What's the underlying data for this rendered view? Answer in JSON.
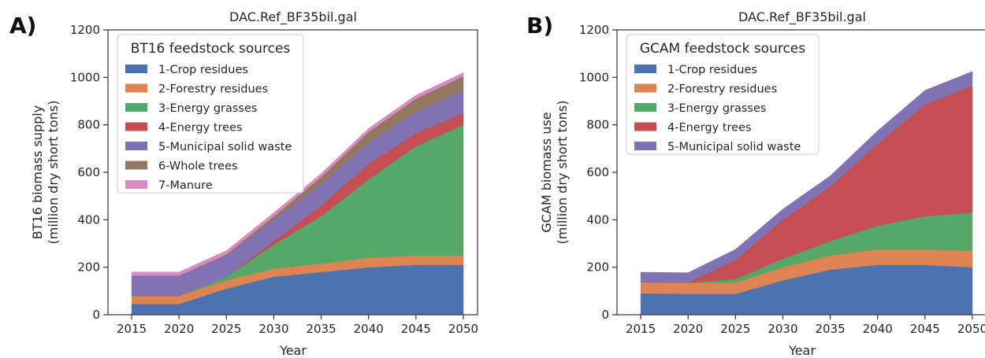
{
  "chart_data": [
    {
      "type": "area",
      "stacked": true,
      "panel_label": "A)",
      "title": "DAC.Ref_BF35bil.gal",
      "xlabel": "Year",
      "ylabel": "BT16 biomass supply",
      "ylabel_line2": "(million dry short tons)",
      "xlim": [
        2012.5,
        2051.5
      ],
      "ylim": [
        0,
        1200
      ],
      "x": [
        2015,
        2020,
        2025,
        2030,
        2035,
        2040,
        2045,
        2050
      ],
      "xticks": [
        "2015",
        "2020",
        "2025",
        "2030",
        "2035",
        "2040",
        "2045",
        "2050"
      ],
      "yticks": [
        "0",
        "200",
        "400",
        "600",
        "800",
        "1000",
        "1200"
      ],
      "grid": false,
      "legend_title": "BT16 feedstock sources",
      "legend_position": "top-left",
      "series": [
        {
          "name": "1-Crop residues",
          "color": "#4c72b0",
          "values": [
            45,
            45,
            110,
            160,
            180,
            200,
            210,
            210
          ]
        },
        {
          "name": "2-Forestry residues",
          "color": "#dd8452",
          "values": [
            35,
            35,
            35,
            35,
            35,
            40,
            40,
            40
          ]
        },
        {
          "name": "3-Energy grasses",
          "color": "#55a868",
          "values": [
            0,
            0,
            15,
            100,
            200,
            330,
            460,
            550
          ]
        },
        {
          "name": "4-Energy trees",
          "color": "#c44e52",
          "values": [
            0,
            0,
            0,
            15,
            45,
            65,
            55,
            50
          ]
        },
        {
          "name": "5-Municipal solid waste",
          "color": "#8172b3",
          "values": [
            85,
            85,
            90,
            90,
            90,
            90,
            90,
            95
          ]
        },
        {
          "name": "6-Whole trees",
          "color": "#937860",
          "values": [
            0,
            0,
            5,
            15,
            30,
            45,
            55,
            60
          ]
        },
        {
          "name": "7-Manure",
          "color": "#da8bc3",
          "values": [
            15,
            15,
            15,
            15,
            15,
            15,
            15,
            15
          ]
        }
      ]
    },
    {
      "type": "area",
      "stacked": true,
      "panel_label": "B)",
      "title": "DAC.Ref_BF35bil.gal",
      "xlabel": "Year",
      "ylabel": "GCAM biomass use",
      "ylabel_line2": "(million dry short tons)",
      "xlim": [
        2012.5,
        2051.5
      ],
      "ylim": [
        0,
        1200
      ],
      "x": [
        2015,
        2020,
        2025,
        2030,
        2035,
        2040,
        2045,
        2050
      ],
      "xticks": [
        "2015",
        "2020",
        "2025",
        "2030",
        "2035",
        "2040",
        "2045",
        "2050"
      ],
      "yticks": [
        "0",
        "200",
        "400",
        "600",
        "800",
        "1000",
        "1200"
      ],
      "grid": false,
      "legend_title": "GCAM feedstock sources",
      "legend_position": "top-left",
      "series": [
        {
          "name": "1-Crop residues",
          "color": "#4c72b0",
          "values": [
            90,
            88,
            88,
            145,
            190,
            210,
            210,
            200
          ]
        },
        {
          "name": "2-Forestry residues",
          "color": "#dd8452",
          "values": [
            47,
            47,
            47,
            55,
            60,
            65,
            65,
            70
          ]
        },
        {
          "name": "3-Energy grasses",
          "color": "#55a868",
          "values": [
            0,
            0,
            15,
            35,
            60,
            100,
            140,
            160
          ]
        },
        {
          "name": "4-Energy trees",
          "color": "#c44e52",
          "values": [
            0,
            0,
            80,
            165,
            230,
            345,
            470,
            535
          ]
        },
        {
          "name": "5-Municipal solid waste",
          "color": "#8172b3",
          "values": [
            42,
            42,
            45,
            45,
            45,
            55,
            60,
            60
          ]
        }
      ]
    }
  ]
}
